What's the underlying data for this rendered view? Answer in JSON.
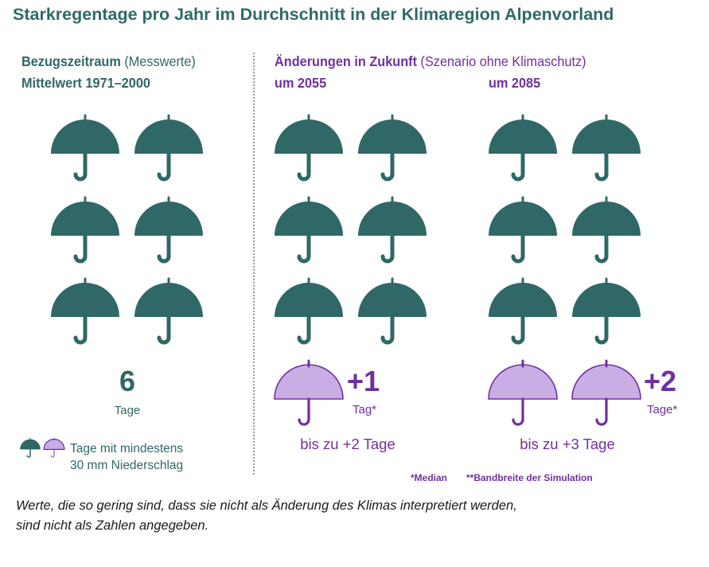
{
  "title": "Starkregentage pro Jahr im Durchschnitt in der Klimaregion Alpenvorland",
  "colors": {
    "reference": "#2f6866",
    "change": "#c9aee6",
    "change_outline": "#7030a0",
    "accent": "#7030a0"
  },
  "reference": {
    "header_bold": "Bezugszeitraum",
    "header_normal": " (Messwerte)",
    "subheader": "Mittelwert 1971–2000",
    "value": "6",
    "unit": "Tage"
  },
  "future": {
    "header_bold": "Änderungen in Zukunft",
    "header_normal": " (Szenario ohne Klimaschutz)",
    "p2055": {
      "label": "um 2055",
      "change": "+1",
      "unit": "Tag*",
      "range": "bis zu +2 Tage"
    },
    "p2085": {
      "label": "um 2085",
      "change": "+2",
      "unit": "Tage*",
      "range": "bis zu +3 Tage"
    }
  },
  "legend": {
    "line1": "Tage mit mindestens",
    "line2": "30 mm Niederschlag"
  },
  "footnotes": {
    "median": "*Median",
    "band": "**Bandbreite der Simulation"
  },
  "note": {
    "line1": "Werte, die so gering sind, dass sie nicht als Änderung des Klimas interpretiert werden,",
    "line2": "sind nicht als Zahlen angegeben."
  },
  "chart_data": {
    "type": "pictogram",
    "title": "Starkregentage pro Jahr im Durchschnitt in der Klimaregion Alpenvorland",
    "unit": "Tage mit mindestens 30 mm Niederschlag",
    "periods": [
      {
        "label": "Mittelwert 1971–2000",
        "baseline_days": 6,
        "change_days": 0
      },
      {
        "label": "um 2055",
        "baseline_days": 6,
        "change_days": 1,
        "upper_bound_change": 2
      },
      {
        "label": "um 2085",
        "baseline_days": 6,
        "change_days": 2,
        "upper_bound_change": 3
      }
    ]
  }
}
